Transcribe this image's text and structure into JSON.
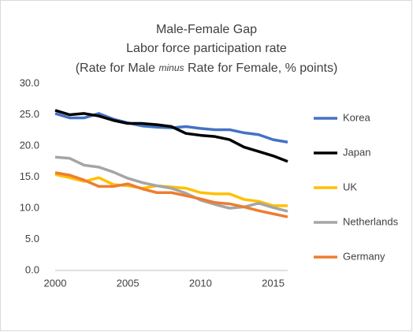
{
  "chart_data": {
    "type": "line",
    "title": "Male-Female Gap",
    "subtitle": "Labor force participation rate",
    "note_parts": [
      "(Rate for Male ",
      "minus",
      " Rate for Female, % points)"
    ],
    "x": [
      2000,
      2001,
      2002,
      2003,
      2004,
      2005,
      2006,
      2007,
      2008,
      2009,
      2010,
      2011,
      2012,
      2013,
      2014,
      2015,
      2016
    ],
    "xlim": [
      2000,
      2016
    ],
    "xticks": [
      2000,
      2005,
      2010,
      2015
    ],
    "ylim": [
      0,
      30
    ],
    "yticks": [
      {
        "value": 0,
        "label": "0.0"
      },
      {
        "value": 5,
        "label": "5.0"
      },
      {
        "value": 10,
        "label": "10.0"
      },
      {
        "value": 15,
        "label": "15.0"
      },
      {
        "value": 20,
        "label": "20.0"
      },
      {
        "value": 25,
        "label": "25.0"
      },
      {
        "value": 30,
        "label": "30.0"
      }
    ],
    "grid": false,
    "legend": "right",
    "series": [
      {
        "name": "Korea",
        "color": "#4472c4",
        "values": [
          25.2,
          24.5,
          24.5,
          25.2,
          24.3,
          23.7,
          23.2,
          23.0,
          22.9,
          23.1,
          22.8,
          22.6,
          22.6,
          22.1,
          21.8,
          21.0,
          20.6
        ]
      },
      {
        "name": "Japan",
        "color": "#000000",
        "values": [
          25.7,
          25.0,
          25.2,
          24.8,
          24.1,
          23.6,
          23.6,
          23.4,
          23.1,
          22.0,
          21.7,
          21.5,
          21.0,
          19.8,
          19.1,
          18.4,
          17.5
        ]
      },
      {
        "name": "UK",
        "color": "#ffc000",
        "values": [
          15.4,
          14.9,
          14.3,
          14.9,
          13.8,
          13.6,
          13.2,
          13.6,
          13.4,
          13.2,
          12.5,
          12.3,
          12.3,
          11.4,
          11.1,
          10.4,
          10.4
        ]
      },
      {
        "name": "Netherlands",
        "color": "#a5a5a5",
        "values": [
          18.2,
          18.0,
          16.9,
          16.6,
          15.8,
          14.8,
          14.1,
          13.6,
          13.2,
          12.4,
          11.3,
          10.6,
          10.0,
          10.2,
          10.8,
          10.1,
          9.5
        ]
      },
      {
        "name": "Germany",
        "color": "#ed7d31",
        "values": [
          15.7,
          15.3,
          14.5,
          13.5,
          13.5,
          13.9,
          13.1,
          12.5,
          12.5,
          12.0,
          11.5,
          10.9,
          10.7,
          10.2,
          9.6,
          9.1,
          8.6
        ]
      }
    ]
  }
}
